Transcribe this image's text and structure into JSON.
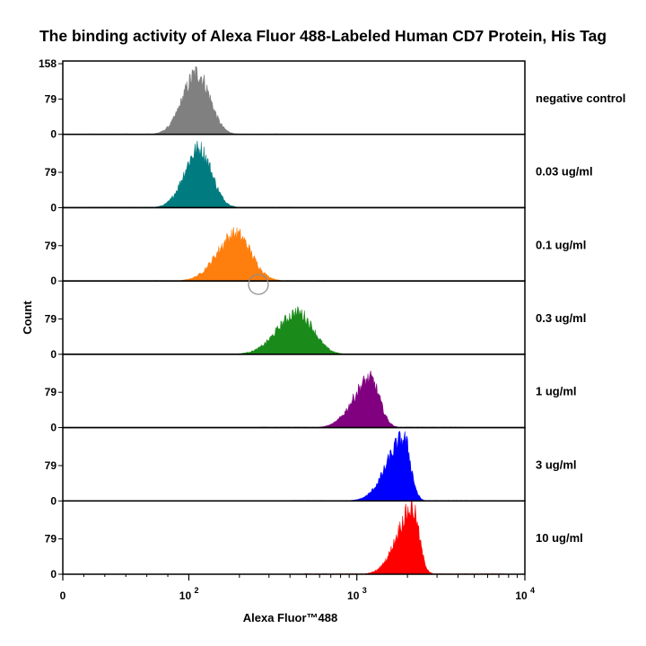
{
  "chart_data": {
    "type": "area",
    "title": "The binding activity of Alexa Fluor 488-Labeled Human CD7 Protein, His Tag",
    "xlabel": "Alexa Fluor™488",
    "ylabel": "Count",
    "x_scale": "log",
    "x_ticks": [
      "0",
      "10",
      "10",
      "10"
    ],
    "x_tick_exponents": [
      "",
      "2",
      "3",
      "4"
    ],
    "y_tick_labels_top": [
      "158",
      "79",
      "0"
    ],
    "y_tick_labels": [
      "79",
      "0"
    ],
    "y_max": 158,
    "series": [
      {
        "name": "negative control",
        "color": "#808080",
        "peak_log10": 2.05,
        "peak_count": 136,
        "sigma_left": 0.085,
        "sigma_right": 0.075
      },
      {
        "name": "0.03 ug/ml",
        "color": "#007b7f",
        "peak_log10": 2.06,
        "peak_count": 130,
        "sigma_left": 0.085,
        "sigma_right": 0.075
      },
      {
        "name": "0.1 ug/ml",
        "color": "#ff7f0e",
        "peak_log10": 2.28,
        "peak_count": 104,
        "sigma_left": 0.11,
        "sigma_right": 0.09
      },
      {
        "name": "0.3 ug/ml",
        "color": "#1a8a1a",
        "peak_log10": 2.65,
        "peak_count": 92,
        "sigma_left": 0.12,
        "sigma_right": 0.09
      },
      {
        "name": "1 ug/ml",
        "color": "#800080",
        "peak_log10": 3.08,
        "peak_count": 108,
        "sigma_left": 0.1,
        "sigma_right": 0.055
      },
      {
        "name": "3 ug/ml",
        "color": "#0000ff",
        "peak_log10": 3.28,
        "peak_count": 138,
        "sigma_left": 0.1,
        "sigma_right": 0.04
      },
      {
        "name": "10 ug/ml",
        "color": "#ff0000",
        "peak_log10": 3.33,
        "peak_count": 146,
        "sigma_left": 0.09,
        "sigma_right": 0.04
      }
    ],
    "grid": false,
    "legend_placement": "right"
  }
}
